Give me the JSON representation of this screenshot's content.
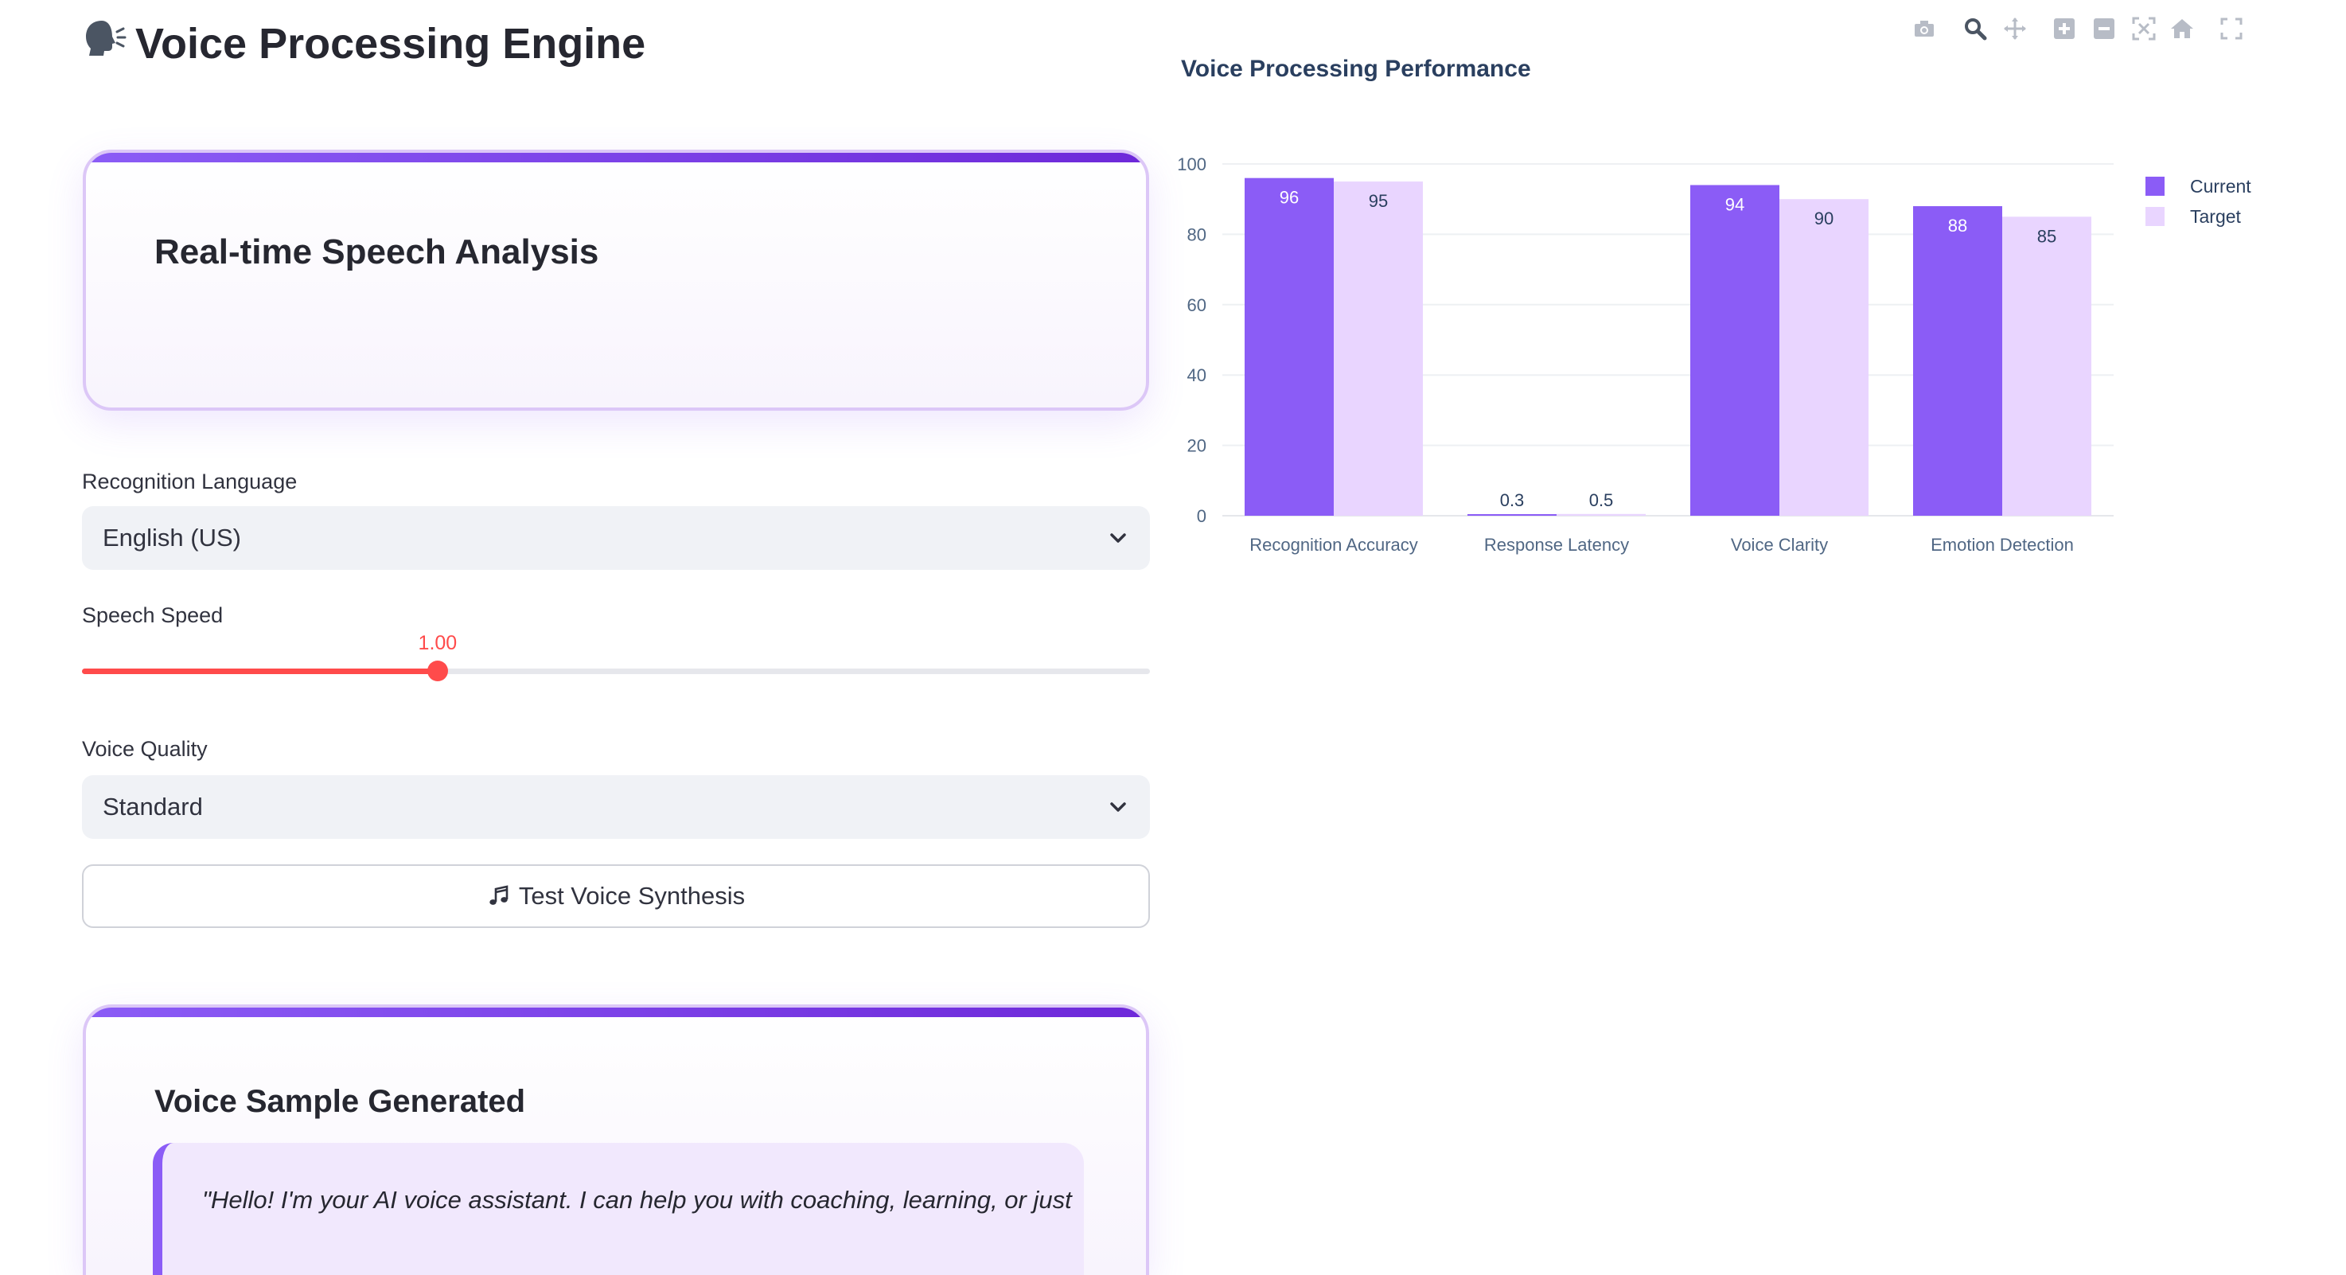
{
  "app": {
    "title": "Voice Processing Engine",
    "title_icon": "speaking-head-icon"
  },
  "analysis_card": {
    "title": "Real-time Speech Analysis"
  },
  "recognition_language": {
    "label": "Recognition Language",
    "value": "English (US)"
  },
  "speech_speed": {
    "label": "Speech Speed",
    "value": 1.0,
    "value_text": "1.00",
    "level_fraction": 0.333
  },
  "voice_quality": {
    "label": "Voice Quality",
    "value": "Standard"
  },
  "test_button": {
    "label": "Test Voice Synthesis",
    "icon": "music-note-icon"
  },
  "sample_card": {
    "title": "Voice Sample Generated",
    "quote": "\"Hello! I'm your AI voice assistant. I can help you with coaching, learning, or just"
  },
  "modebar": {
    "icons": [
      "camera-icon",
      "zoom-icon",
      "pan-icon",
      "zoom-in-icon",
      "zoom-out-icon",
      "autoscale-icon",
      "reset-axes-icon",
      "fullscreen-icon"
    ]
  },
  "colors": {
    "current": "#8b5cf6",
    "target": "#e9d5ff",
    "accent": "#ff4b4b",
    "brand": "#7c3aed"
  },
  "chart_data": {
    "type": "bar",
    "title": "Voice Processing Performance",
    "categories": [
      "Recognition Accuracy",
      "Response Latency",
      "Voice Clarity",
      "Emotion Detection"
    ],
    "series": [
      {
        "name": "Current",
        "values": [
          96,
          0.3,
          94,
          88
        ],
        "labels": [
          "96",
          "0.3",
          "94",
          "88"
        ]
      },
      {
        "name": "Target",
        "values": [
          95,
          0.5,
          90,
          85
        ],
        "labels": [
          "95",
          "0.5",
          "90",
          "85"
        ]
      }
    ],
    "ylim": [
      0,
      100
    ],
    "yticks": [
      0,
      20,
      40,
      60,
      80,
      100
    ],
    "grid": true,
    "legend": "top-right",
    "xlabel": "",
    "ylabel": ""
  }
}
